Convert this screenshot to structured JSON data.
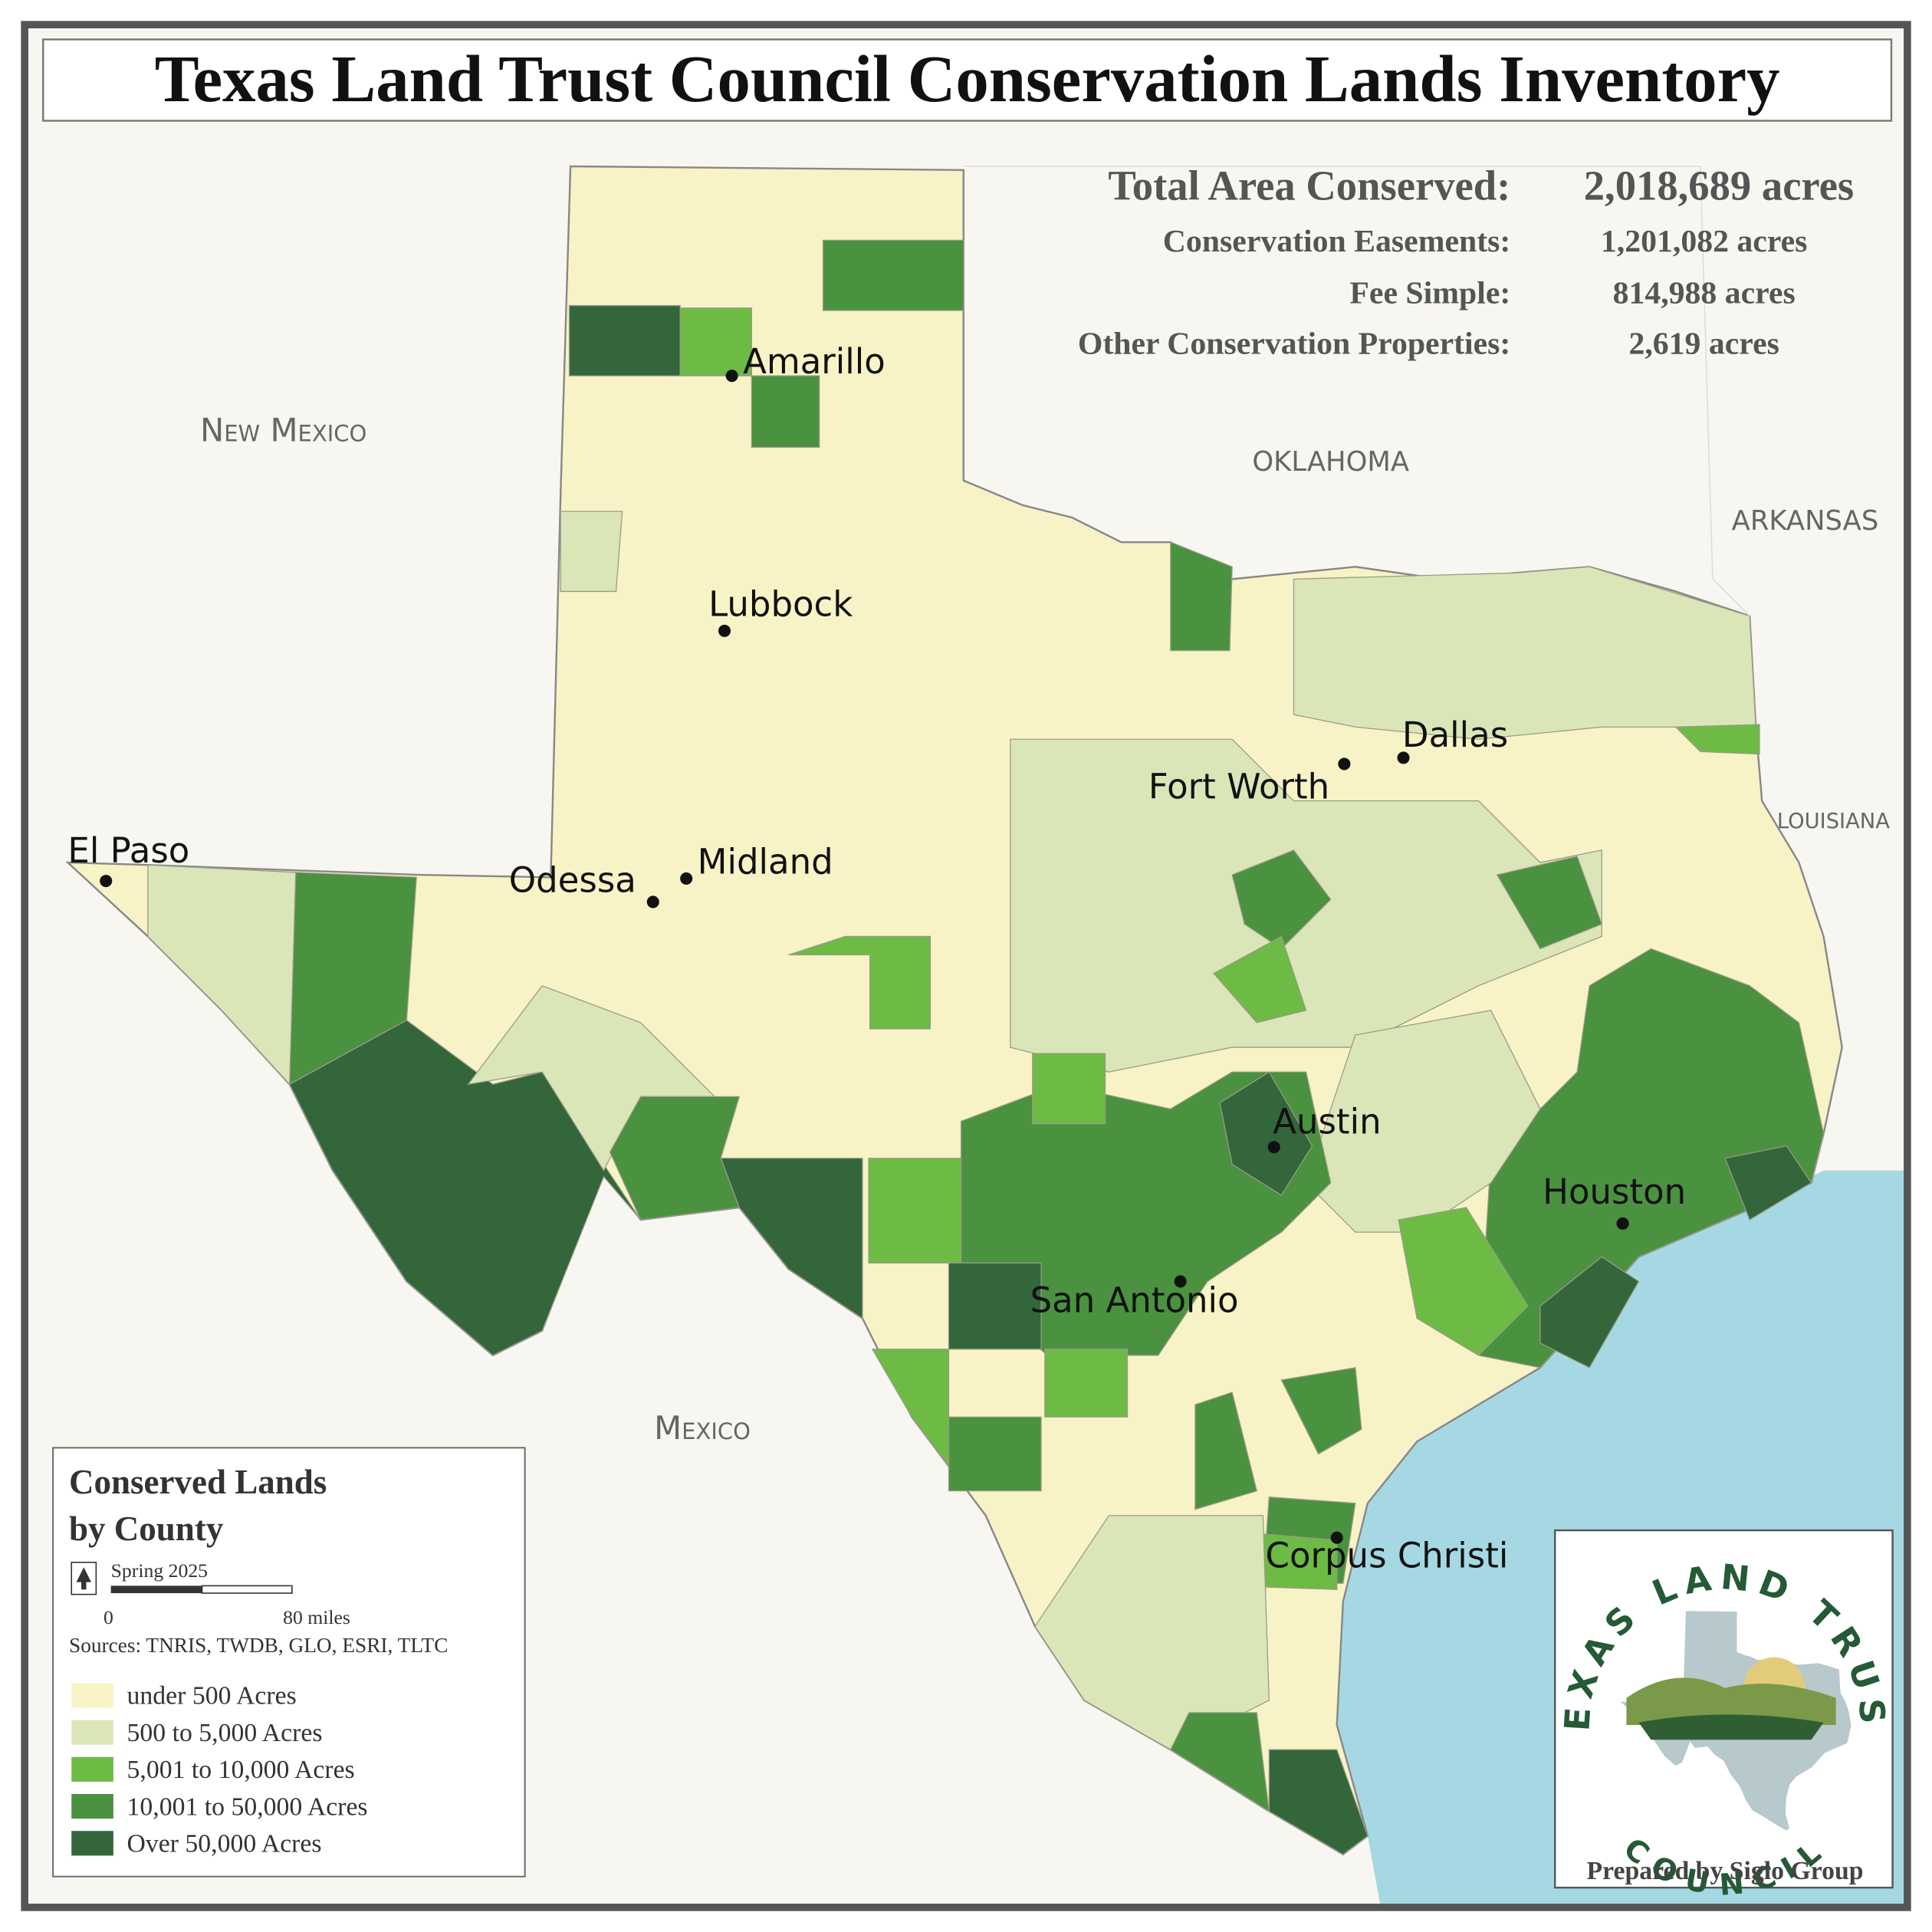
{
  "title": "Texas Land Trust Council Conservation Lands Inventory",
  "summary": {
    "rows": [
      {
        "label": "Total Area Conserved:",
        "value": "2,018,689 acres"
      },
      {
        "label": "Conservation Easements:",
        "value": "1,201,082 acres"
      },
      {
        "label": "Fee Simple:",
        "value": "814,988 acres"
      },
      {
        "label": "Other Conservation Properties:",
        "value": "2,619 acres"
      }
    ]
  },
  "map_labels": {
    "states": [
      "New Mexico",
      "OKLAHOMA",
      "ARKANSAS",
      "LOUISIANA",
      "Mexico"
    ],
    "cities": [
      "Amarillo",
      "Lubbock",
      "Dallas",
      "Fort Worth",
      "El Paso",
      "Odessa",
      "Midland",
      "Austin",
      "Houston",
      "San Antonio",
      "Corpus Christi"
    ]
  },
  "legend": {
    "title_line1": "Conserved Lands",
    "title_line2": "by County",
    "date": "Spring 2025",
    "scale_start": "0",
    "scale_end": "80 miles",
    "sources": "Sources: TNRIS, TWDB, GLO, ESRI, TLTC",
    "classes": [
      {
        "label": "under 500 Acres",
        "color": "#f7f3c6"
      },
      {
        "label": "500 to 5,000 Acres",
        "color": "#dbe6b8"
      },
      {
        "label": "5,001 to 10,000 Acres",
        "color": "#6dbb45"
      },
      {
        "label": "10,001 to 50,000 Acres",
        "color": "#4a9140"
      },
      {
        "label": "Over 50,000 Acres",
        "color": "#33663a"
      }
    ]
  },
  "logo": {
    "top": "TEXAS LAND TRUST",
    "bottom": "COUNCIL",
    "prepared_by": "Prepared by Siglo Group"
  }
}
